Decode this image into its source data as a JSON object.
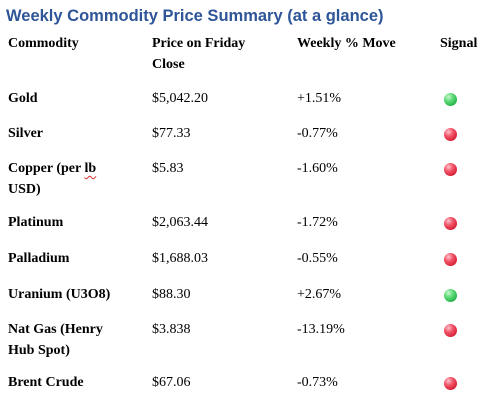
{
  "title": "Weekly Commodity Price Summary (at a glance)",
  "headers": {
    "commodity": "Commodity",
    "price_line1": "Price on Friday",
    "price_line2": "Close",
    "move": "Weekly % Move",
    "signal": "Signal"
  },
  "rows": [
    {
      "name": "Gold",
      "price": "$5,042.20",
      "move": "+1.51%",
      "signal": "green",
      "signal_color": "#2ebd50"
    },
    {
      "name": "Silver",
      "price": "$77.33",
      "move": "-0.77%",
      "signal": "red",
      "signal_color": "#e32b40"
    },
    {
      "name_part1": "Copper (per ",
      "name_part2": "lb",
      "name_part3": "USD)",
      "price": "$5.83",
      "move": "-1.60%",
      "signal": "red",
      "signal_color": "#e32b40"
    },
    {
      "name": "Platinum",
      "price": "$2,063.44",
      "move": "-1.72%",
      "signal": "red",
      "signal_color": "#e32b40"
    },
    {
      "name": "Palladium",
      "price": "$1,688.03",
      "move": "-0.55%",
      "signal": "red",
      "signal_color": "#e32b40"
    },
    {
      "name": "Uranium (U3O8)",
      "price": "$88.30",
      "move": "+2.67%",
      "signal": "green",
      "signal_color": "#2ebd50"
    },
    {
      "name_line1": "Nat Gas (Henry",
      "name_line2": "Hub Spot)",
      "price": "$3.838",
      "move": "-13.19%",
      "signal": "red",
      "signal_color": "#e32b40"
    },
    {
      "name": "Brent Crude",
      "price": "$67.06",
      "move": "-0.73%",
      "signal": "red",
      "signal_color": "#e32b40"
    }
  ],
  "colors": {
    "title": "#2e5597",
    "text": "#000000",
    "green": "#2ebd50",
    "red": "#e32b40",
    "spellcheck": "#e02b2b"
  }
}
